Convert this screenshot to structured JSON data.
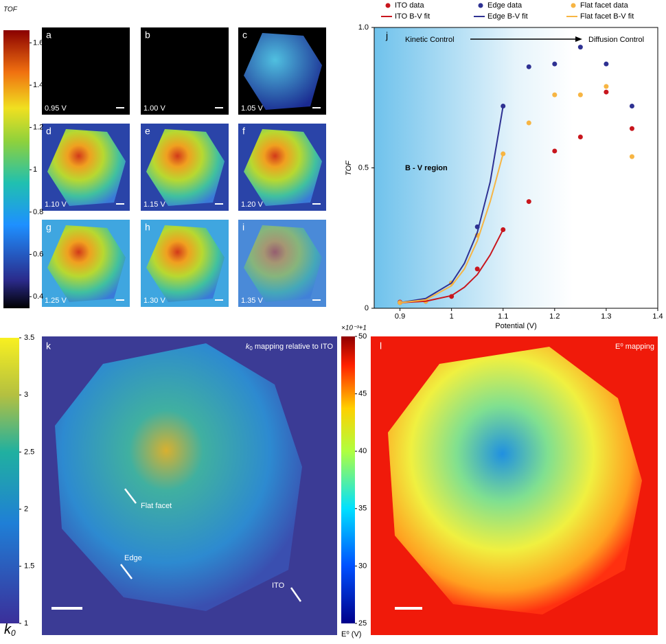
{
  "chart_data": [
    {
      "type": "scatter",
      "panel": "j",
      "xlabel": "Potential (V)",
      "ylabel": "TOF",
      "xlim": [
        0.85,
        1.4
      ],
      "xticks": [
        0.9,
        1,
        1.1,
        1.2,
        1.3,
        1.4
      ],
      "ylim": [
        0,
        1
      ],
      "yticks": [
        0,
        0.5,
        {
          "value": 1,
          "label": "1.0"
        }
      ],
      "annotations": [
        "Kinetic Control",
        "Diffusion Control",
        "B - V region"
      ],
      "series": [
        {
          "name": "ITO data",
          "color": "#c8161d",
          "mode": "markers",
          "x": [
            0.9,
            0.95,
            1,
            1.05,
            1.1,
            1.15,
            1.2,
            1.25,
            1.3,
            1.35
          ],
          "values": [
            0.022,
            0.025,
            0.042,
            0.14,
            0.28,
            0.38,
            0.56,
            0.61,
            0.77,
            0.64
          ]
        },
        {
          "name": "Edge data",
          "color": "#2e3192",
          "mode": "markers",
          "x": [
            0.9,
            0.95,
            1,
            1.05,
            1.1,
            1.15,
            1.2,
            1.25,
            1.3,
            1.35
          ],
          "values": [
            0.02,
            0.025,
            0.09,
            0.29,
            0.72,
            0.86,
            0.87,
            0.93,
            0.87,
            0.72
          ]
        },
        {
          "name": "Flat facet data",
          "color": "#f7b543",
          "mode": "markers",
          "x": [
            0.9,
            0.95,
            1,
            1.05,
            1.1,
            1.15,
            1.2,
            1.25,
            1.3,
            1.35
          ],
          "values": [
            0.02,
            0.025,
            0.09,
            0.26,
            0.55,
            0.66,
            0.76,
            0.76,
            0.79,
            0.54
          ]
        },
        {
          "name": "ITO B-V fit",
          "color": "#c8161d",
          "mode": "line",
          "x": [
            0.9,
            0.95,
            1,
            1.025,
            1.05,
            1.075,
            1.1
          ],
          "values": [
            0.02,
            0.025,
            0.045,
            0.075,
            0.12,
            0.19,
            0.28
          ]
        },
        {
          "name": "Edge B-V fit",
          "color": "#2e3192",
          "mode": "line",
          "x": [
            0.9,
            0.95,
            1,
            1.025,
            1.05,
            1.075,
            1.1
          ],
          "values": [
            0.02,
            0.035,
            0.09,
            0.16,
            0.27,
            0.45,
            0.72
          ]
        },
        {
          "name": "Flat facet B-V fit",
          "color": "#f7b543",
          "mode": "line",
          "x": [
            0.9,
            0.95,
            1,
            1.025,
            1.05,
            1.075,
            1.1
          ],
          "values": [
            0.02,
            0.03,
            0.08,
            0.14,
            0.24,
            0.38,
            0.55
          ]
        }
      ]
    },
    {
      "type": "colorbar",
      "title": "TOF",
      "ylim": [
        0.345,
        1.66
      ],
      "yticks": [
        0.4,
        0.6,
        0.8,
        1,
        1.2,
        1.4,
        1.6
      ]
    },
    {
      "type": "colorbar",
      "title": "k",
      "title_subscript": "0",
      "ylim": [
        1,
        3.5
      ],
      "yticks": [
        1,
        1.5,
        2,
        2.5,
        3,
        3.5
      ]
    },
    {
      "type": "colorbar",
      "title": "×10⁻³+1",
      "xlabel": "E⁰ (V)",
      "ylim": [
        25,
        50
      ],
      "yticks": [
        25,
        30,
        35,
        40,
        45,
        50
      ]
    }
  ],
  "panels": [
    {
      "label": "a",
      "caption": "0.95 V"
    },
    {
      "label": "b",
      "caption": "1.00 V"
    },
    {
      "label": "c",
      "caption": "1.05 V"
    },
    {
      "label": "d",
      "caption": "1.10 V"
    },
    {
      "label": "e",
      "caption": "1.15 V"
    },
    {
      "label": "f",
      "caption": "1.20 V"
    },
    {
      "label": "g",
      "caption": "1.25 V"
    },
    {
      "label": "h",
      "caption": "1.30 V"
    },
    {
      "label": "i",
      "caption": "1.35 V"
    }
  ],
  "maps": {
    "k": {
      "label": "k",
      "title": "k",
      "title_subscript": "0",
      "title_rest": " mapping relative to ITO",
      "annotations": [
        "Flat facet",
        "Edge",
        "ITO"
      ]
    },
    "l": {
      "label": "l",
      "title": "E⁰ mapping"
    }
  }
}
